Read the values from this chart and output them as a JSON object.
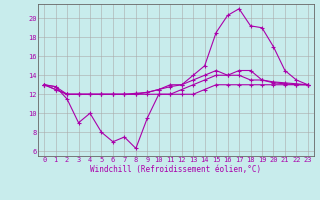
{
  "xlabel": "Windchill (Refroidissement éolien,°C)",
  "bg_color": "#c8ecec",
  "line_color": "#aa00aa",
  "grid_color": "#aaaaaa",
  "border_color": "#666666",
  "xlim": [
    -0.5,
    23.5
  ],
  "ylim": [
    5.5,
    21.5
  ],
  "yticks": [
    6,
    8,
    10,
    12,
    14,
    16,
    18,
    20
  ],
  "xticks": [
    0,
    1,
    2,
    3,
    4,
    5,
    6,
    7,
    8,
    9,
    10,
    11,
    12,
    13,
    14,
    15,
    16,
    17,
    18,
    19,
    20,
    21,
    22,
    23
  ],
  "line1_x": [
    0,
    1,
    2,
    3,
    4,
    5,
    6,
    7,
    8,
    9,
    10,
    11,
    12,
    13,
    14,
    15,
    16,
    17,
    18,
    19,
    20,
    21,
    22,
    23
  ],
  "line1_y": [
    13,
    12.8,
    11.5,
    9.0,
    10.0,
    8.0,
    7.0,
    7.5,
    6.3,
    9.5,
    12.0,
    12.0,
    12.0,
    12.0,
    12.5,
    13.0,
    13.0,
    13.0,
    13.0,
    13.0,
    13.0,
    13.0,
    13.0,
    13.0
  ],
  "line2_x": [
    0,
    1,
    2,
    3,
    4,
    5,
    6,
    7,
    8,
    9,
    10,
    11,
    12,
    13,
    14,
    15,
    16,
    17,
    18,
    19,
    20,
    21,
    22,
    23
  ],
  "line2_y": [
    13,
    12.8,
    12.0,
    12.0,
    12.0,
    12.0,
    12.0,
    12.0,
    12.1,
    12.2,
    12.5,
    13.0,
    13.0,
    13.5,
    14.0,
    14.5,
    14.0,
    14.0,
    13.5,
    13.5,
    13.3,
    13.2,
    13.1,
    13.0
  ],
  "line3_x": [
    0,
    1,
    2,
    3,
    4,
    5,
    6,
    7,
    8,
    9,
    10,
    11,
    12,
    13,
    14,
    15,
    16,
    17,
    18,
    19,
    20,
    21,
    22,
    23
  ],
  "line3_y": [
    13,
    12.5,
    12.0,
    12.0,
    12.0,
    12.0,
    12.0,
    12.0,
    12.0,
    12.2,
    12.5,
    12.8,
    13.0,
    14.0,
    15.0,
    18.5,
    20.3,
    21.0,
    19.2,
    19.0,
    17.0,
    14.5,
    13.5,
    13.0
  ],
  "line4_x": [
    0,
    1,
    2,
    3,
    4,
    5,
    6,
    7,
    8,
    9,
    10,
    11,
    12,
    13,
    14,
    15,
    16,
    17,
    18,
    19,
    20,
    21,
    22,
    23
  ],
  "line4_y": [
    13,
    12.5,
    12.0,
    12.0,
    12.0,
    12.0,
    12.0,
    12.0,
    12.0,
    12.0,
    12.0,
    12.0,
    12.5,
    13.0,
    13.5,
    14.0,
    14.0,
    14.5,
    14.5,
    13.5,
    13.2,
    13.1,
    13.0,
    13.0
  ],
  "tick_fontsize": 5,
  "xlabel_fontsize": 5.5,
  "linewidth": 0.8,
  "markersize": 3
}
